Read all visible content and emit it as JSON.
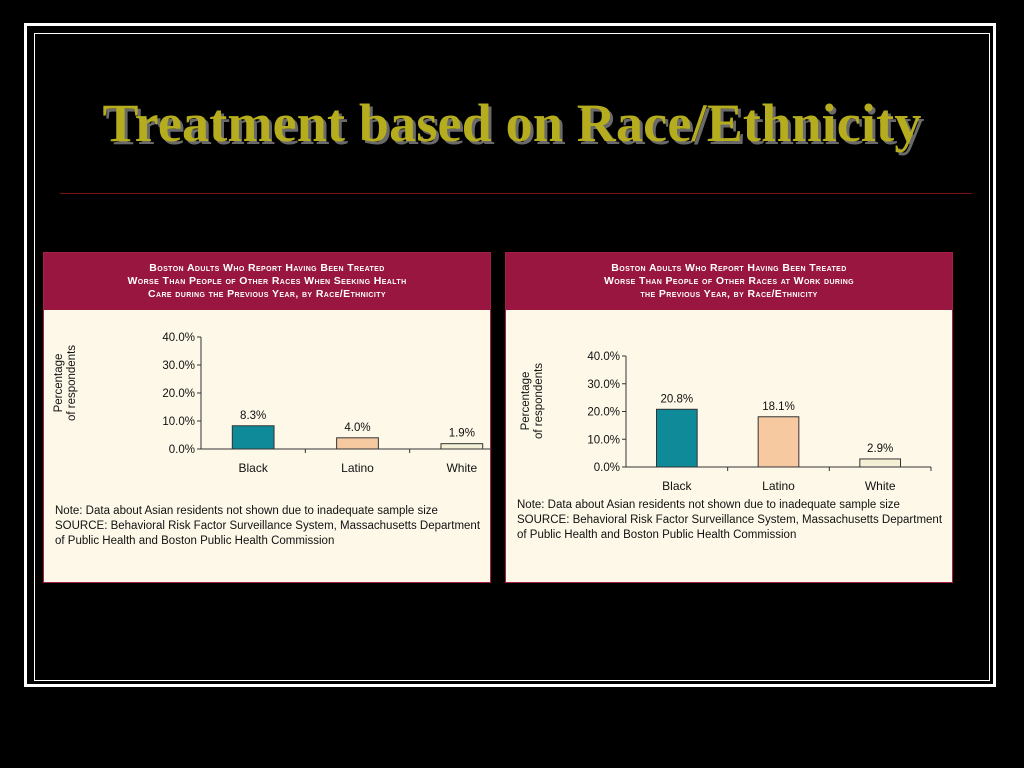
{
  "slide": {
    "title": "Treatment based on Race/Ethnicity"
  },
  "chart_data": [
    {
      "type": "bar",
      "title": "Boston Adults Who Report Having Been Treated Worse Than People of Other Races When Seeking Health Care during the Previous Year, by Race/Ethnicity",
      "title_lines": [
        "Boston Adults Who Report Having Been Treated",
        "Worse Than People of Other Races When Seeking Health",
        "Care during the Previous Year, by Race/Ethnicity"
      ],
      "categories": [
        "Black",
        "Latino",
        "White"
      ],
      "values": [
        8.3,
        4.0,
        1.9
      ],
      "value_labels": [
        "8.3%",
        "4.0%",
        "1.9%"
      ],
      "bar_colors": [
        "#0f8a99",
        "#f6c9a1",
        "#f4f0d6"
      ],
      "xlabel": "",
      "ylabel": "Percentage of respondents",
      "ylabel_lines": [
        "Percentage",
        "of respondents"
      ],
      "ylim": [
        0,
        40
      ],
      "yticks": [
        0,
        10,
        20,
        30,
        40
      ],
      "ytick_labels": [
        "0.0%",
        "10.0%",
        "20.0%",
        "30.0%",
        "40.0%"
      ],
      "grid": false,
      "legend": "none",
      "note": "Note: Data about Asian residents not shown due to inadequate sample size",
      "source": "SOURCE:  Behavioral Risk Factor Surveillance System, Massachusetts Department of Public Health and Boston Public Health Commission"
    },
    {
      "type": "bar",
      "title": "Boston Adults Who Report Having Been Treated Worse Than People of Other Races at Work during the Previous Year, by Race/Ethnicity",
      "title_lines": [
        "Boston Adults Who Report Having Been Treated",
        "Worse Than People of Other Races at Work during",
        "the Previous Year, by Race/Ethnicity"
      ],
      "categories": [
        "Black",
        "Latino",
        "White"
      ],
      "values": [
        20.8,
        18.1,
        2.9
      ],
      "value_labels": [
        "20.8%",
        "18.1%",
        "2.9%"
      ],
      "bar_colors": [
        "#0f8a99",
        "#f6c9a1",
        "#f4f0d6"
      ],
      "xlabel": "",
      "ylabel": "Percentage of respondents",
      "ylabel_lines": [
        "Percentage",
        "of respondents"
      ],
      "ylim": [
        0,
        40
      ],
      "yticks": [
        0,
        10,
        20,
        30,
        40
      ],
      "ytick_labels": [
        "0.0%",
        "10.0%",
        "20.0%",
        "30.0%",
        "40.0%"
      ],
      "grid": false,
      "legend": "none",
      "note": "Note: Data about Asian residents not shown due to inadequate sample size",
      "source": "SOURCE:  Behavioral Risk Factor Surveillance System, Massachusetts Department of Public Health and Boston Public Health Commission"
    }
  ]
}
